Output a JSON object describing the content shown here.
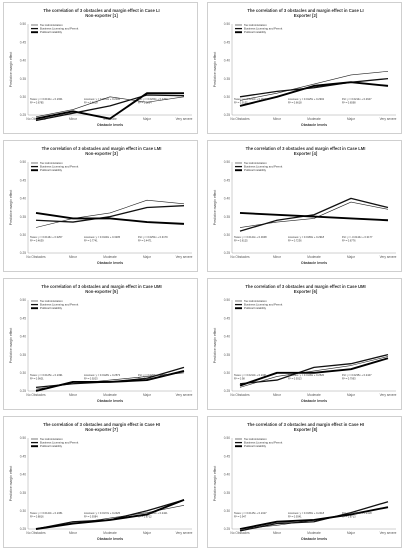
{
  "ylabel": "Predictive margin effect",
  "xlabel": "Obstacle levels",
  "legend": [
    "Tax Administration",
    "Business Licensing and Permit",
    "Political Instability"
  ],
  "panels": [
    {
      "title": "The correlation of 3 obstacles and margin effect in Case LI",
      "subtitle": "Non-exporter [1]",
      "yticks": [
        "0.50",
        "0.45",
        "0.40",
        "0.35",
        "0.30",
        "0.25"
      ],
      "annotations": [
        "Taxes: y = 0.0131x + 0.2301",
        "R² = 0.6785",
        "Licenses: y = 0.0254x + 0.2006",
        "R² = 0.6818",
        "Pol: y = 0.0260x + 0.2259",
        "R² = 0.5894"
      ]
    },
    {
      "title": "The correlation of 3 obstacles and margin effect in Case LI",
      "subtitle": "Exporter [2]",
      "yticks": [
        "0.50",
        "0.45",
        "0.40",
        "0.35",
        "0.30",
        "0.25"
      ],
      "annotations": [
        "Taxes: y = 0.0233x + 0.2815",
        "R² = 0.9135",
        "Licenses: y = 0.0125x + 0.2902",
        "R² = 0.6618",
        "Pol: y = 0.0214x + 0.2647",
        "R² = 0.6598"
      ]
    },
    {
      "title": "The correlation of 3 obstacles and margin effect in Case LMI",
      "subtitle": "Non-exporter [3]",
      "yticks": [
        "0.50",
        "0.45",
        "0.40",
        "0.35",
        "0.30",
        "0.25"
      ],
      "annotations": [
        "Taxes: y = 0.0116x + 0.3257",
        "R² = 0.4639",
        "Licenses: y = 0.0146x + 0.3205",
        "R² = 0.7741",
        "Pol: y = 0.0251x + 0.3179",
        "R² = 0.4471"
      ]
    },
    {
      "title": "The correlation of 3 obstacles and margin effect in Case LMI",
      "subtitle": "Exporter [4]",
      "yticks": [
        "0.50",
        "0.45",
        "0.40",
        "0.35",
        "0.30",
        "0.25"
      ],
      "annotations": [
        "Taxes: y = 0.0144x + 0.3048",
        "R² = 0.6125",
        "Licenses: y = 0.0183x + 0.2918",
        "R² = 0.7236",
        "Pol: y = -0.0144x + 0.3177",
        "R² = 0.6776"
      ]
    },
    {
      "title": "The correlation of 3 obstacles and margin effect in Case UMI",
      "subtitle": "Non-exporter [5]",
      "yticks": [
        "0.50",
        "0.45",
        "0.40",
        "0.35",
        "0.30",
        "0.25"
      ],
      "annotations": [
        "Taxes: y = 0.0125x + 0.2491",
        "R² = 0.9601",
        "Licenses: y = 0.0128x + 0.2573",
        "R² = 0.9203",
        "Pol: y = 0.0259x + 0.2422",
        "R² = 0.8876"
      ]
    },
    {
      "title": "The correlation of 3 obstacles and margin effect in Case UMI",
      "subtitle": "Exporter [6]",
      "yticks": [
        "0.50",
        "0.45",
        "0.40",
        "0.35",
        "0.30",
        "0.25"
      ],
      "annotations": [
        "Taxes: y = 0.0213x + 0.2431",
        "R² = 0.98",
        "Licenses: y = 0.0199x + 0.2520",
        "R² = 0.9313",
        "Pol: y = 0.0235x + 0.2447",
        "R² = 0.7993"
      ]
    },
    {
      "title": "The correlation of 3 obstacles and margin effect in Case HI",
      "subtitle": "Non-exporter [7]",
      "yticks": [
        "0.50",
        "0.45",
        "0.40",
        "0.35",
        "0.30",
        "0.25"
      ],
      "annotations": [
        "Taxes: y = 0.0143x + 0.2451",
        "R² = 0.8816",
        "Licenses: y = 0.0172x + 0.2425",
        "R² = 0.9384",
        "Pol: y = 0.0220x + 0.2421",
        "R² = 0.8712"
      ]
    },
    {
      "title": "The correlation of 3 obstacles and margin effect in Case HI",
      "subtitle": "Exporter [8]",
      "yticks": [
        "0.50",
        "0.45",
        "0.40",
        "0.35",
        "0.30",
        "0.25"
      ],
      "annotations": [
        "Taxes: y = 0.0145x + 0.2417",
        "R² = 0.947",
        "Licenses: y = 0.0165x + 0.2418",
        "R² = 0.9341",
        "Pol: y = 0.0212x + 0.2418",
        "R² = 0.8713"
      ]
    }
  ],
  "chart_data": [
    {
      "type": "line",
      "title": "The correlation of 3 obstacles and margin effect in Case LI",
      "subtitle": "Non-exporter [1]",
      "xlabel": "Obstacle levels",
      "ylabel": "Predictive margin effect",
      "ylim": [
        0.25,
        0.5
      ],
      "categories": [
        "No Obstacles",
        "Minor",
        "Moderate",
        "Major",
        "Very severe"
      ],
      "series": [
        {
          "name": "Tax Administration",
          "values": [
            0.245,
            0.265,
            0.3,
            0.285,
            0.3
          ]
        },
        {
          "name": "Business Licensing and Permit",
          "values": [
            0.235,
            0.255,
            0.275,
            0.305,
            0.303
          ]
        },
        {
          "name": "Political Instability",
          "values": [
            0.24,
            0.26,
            0.24,
            0.31,
            0.31
          ]
        }
      ]
    },
    {
      "type": "line",
      "title": "The correlation of 3 obstacles and margin effect in Case LI",
      "subtitle": "Exporter [2]",
      "xlabel": "Obstacle levels",
      "ylabel": "Predictive margin effect",
      "ylim": [
        0.25,
        0.5
      ],
      "categories": [
        "No Obstacles",
        "Minor",
        "Moderate",
        "Major",
        "Very severe"
      ],
      "series": [
        {
          "name": "Tax Administration",
          "values": [
            0.29,
            0.31,
            0.335,
            0.36,
            0.37
          ]
        },
        {
          "name": "Business Licensing and Permit",
          "values": [
            0.3,
            0.315,
            0.325,
            0.34,
            0.35
          ]
        },
        {
          "name": "Political Instability",
          "values": [
            0.275,
            0.3,
            0.33,
            0.34,
            0.33
          ]
        }
      ]
    },
    {
      "type": "line",
      "title": "The correlation of 3 obstacles and margin effect in Case LMI",
      "subtitle": "Non-exporter [3]",
      "xlabel": "Obstacle levels",
      "ylabel": "Predictive margin effect",
      "ylim": [
        0.25,
        0.5
      ],
      "categories": [
        "No Obstacles",
        "Minor",
        "Moderate",
        "Major",
        "Very severe"
      ],
      "series": [
        {
          "name": "Tax Administration",
          "values": [
            0.32,
            0.345,
            0.36,
            0.395,
            0.385
          ]
        },
        {
          "name": "Business Licensing and Permit",
          "values": [
            0.34,
            0.335,
            0.35,
            0.375,
            0.38
          ]
        },
        {
          "name": "Political Instability",
          "values": [
            0.36,
            0.345,
            0.345,
            0.335,
            0.33
          ]
        }
      ]
    },
    {
      "type": "line",
      "title": "The correlation of 3 obstacles and margin effect in Case LMI",
      "subtitle": "Exporter [4]",
      "xlabel": "Obstacle levels",
      "ylabel": "Predictive margin effect",
      "ylim": [
        0.25,
        0.5
      ],
      "categories": [
        "No Obstacles",
        "Minor",
        "Moderate",
        "Major",
        "Very severe"
      ],
      "series": [
        {
          "name": "Tax Administration",
          "values": [
            0.32,
            0.335,
            0.345,
            0.39,
            0.37
          ]
        },
        {
          "name": "Business Licensing and Permit",
          "values": [
            0.31,
            0.34,
            0.355,
            0.4,
            0.375
          ]
        },
        {
          "name": "Political Instability",
          "values": [
            0.36,
            0.355,
            0.35,
            0.345,
            0.34
          ]
        }
      ]
    },
    {
      "type": "line",
      "title": "The correlation of 3 obstacles and margin effect in Case UMI",
      "subtitle": "Non-exporter [5]",
      "xlabel": "Obstacle levels",
      "ylabel": "Predictive margin effect",
      "ylim": [
        0.25,
        0.5
      ],
      "categories": [
        "No Obstacles",
        "Minor",
        "Moderate",
        "Major",
        "Very severe"
      ],
      "series": [
        {
          "name": "Tax Administration",
          "values": [
            0.255,
            0.27,
            0.28,
            0.29,
            0.3
          ]
        },
        {
          "name": "Business Licensing and Permit",
          "values": [
            0.26,
            0.27,
            0.275,
            0.285,
            0.315
          ]
        },
        {
          "name": "Political Instability",
          "values": [
            0.25,
            0.275,
            0.275,
            0.28,
            0.305
          ]
        }
      ]
    },
    {
      "type": "line",
      "title": "The correlation of 3 obstacles and margin effect in Case UMI",
      "subtitle": "Exporter [6]",
      "xlabel": "Obstacle levels",
      "ylabel": "Predictive margin effect",
      "ylim": [
        0.25,
        0.5
      ],
      "categories": [
        "No Obstacles",
        "Minor",
        "Moderate",
        "Major",
        "Very severe"
      ],
      "series": [
        {
          "name": "Tax Administration",
          "values": [
            0.26,
            0.29,
            0.305,
            0.32,
            0.345
          ]
        },
        {
          "name": "Business Licensing and Permit",
          "values": [
            0.27,
            0.28,
            0.315,
            0.325,
            0.35
          ]
        },
        {
          "name": "Political Instability",
          "values": [
            0.265,
            0.3,
            0.3,
            0.31,
            0.34
          ]
        }
      ]
    },
    {
      "type": "line",
      "title": "The correlation of 3 obstacles and margin effect in Case HI",
      "subtitle": "Non-exporter [7]",
      "xlabel": "Obstacle levels",
      "ylabel": "Predictive margin effect",
      "ylim": [
        0.25,
        0.5
      ],
      "categories": [
        "No Obstacles",
        "Minor",
        "Moderate",
        "Major",
        "Very severe"
      ],
      "series": [
        {
          "name": "Tax Administration",
          "values": [
            0.25,
            0.265,
            0.28,
            0.295,
            0.315
          ]
        },
        {
          "name": "Business Licensing and Permit",
          "values": [
            0.25,
            0.27,
            0.275,
            0.3,
            0.33
          ]
        },
        {
          "name": "Political Instability",
          "values": [
            0.25,
            0.265,
            0.275,
            0.29,
            0.33
          ]
        }
      ]
    },
    {
      "type": "line",
      "title": "The correlation of 3 obstacles and margin effect in Case HI",
      "subtitle": "Exporter [8]",
      "xlabel": "Obstacle levels",
      "ylabel": "Predictive margin effect",
      "ylim": [
        0.25,
        0.5
      ],
      "categories": [
        "No Obstacles",
        "Minor",
        "Moderate",
        "Major",
        "Very severe"
      ],
      "series": [
        {
          "name": "Tax Administration",
          "values": [
            0.25,
            0.26,
            0.275,
            0.29,
            0.31
          ]
        },
        {
          "name": "Business Licensing and Permit",
          "values": [
            0.245,
            0.265,
            0.27,
            0.295,
            0.325
          ]
        },
        {
          "name": "Political Instability",
          "values": [
            0.25,
            0.27,
            0.275,
            0.29,
            0.31
          ]
        }
      ]
    }
  ]
}
